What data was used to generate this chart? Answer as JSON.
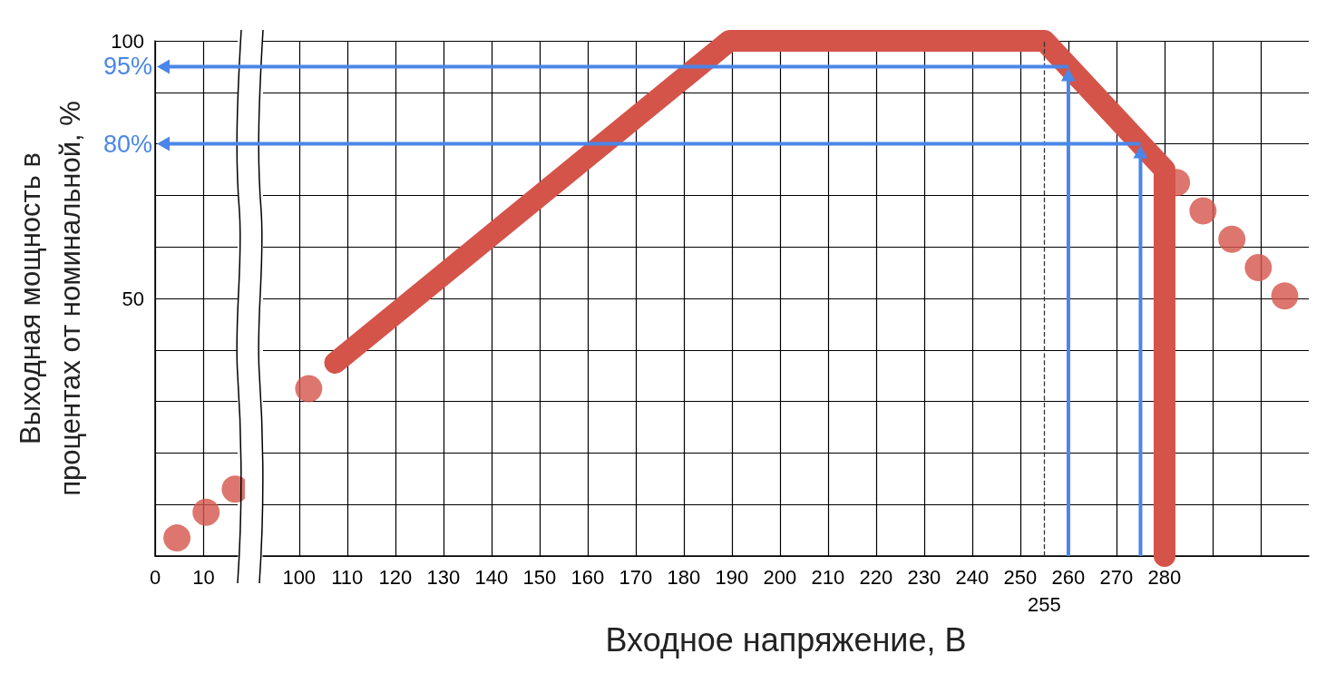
{
  "chart_data": [
    {
      "type": "scatter",
      "ylabel": "Выходная мощность в\nпроцентах от номинальной, %",
      "xlim": [
        0,
        17
      ],
      "xticks": [
        0,
        10
      ],
      "ylim": [
        0,
        100
      ],
      "yticks": [
        {
          "value": 0,
          "label": null
        },
        {
          "value": 10,
          "label": null
        },
        {
          "value": 20,
          "label": null
        },
        {
          "value": 30,
          "label": null
        },
        {
          "value": 40,
          "label": null
        },
        50,
        {
          "value": 60,
          "label": null
        },
        {
          "value": 70,
          "label": null
        },
        {
          "value": 80,
          "label": null
        },
        {
          "value": 90,
          "label": null
        },
        100
      ],
      "grid": true,
      "series": [
        {
          "type": "scatter",
          "marker": "circle",
          "color": "#d4544a",
          "x": [
            4.5,
            10.5,
            16.5
          ],
          "values": [
            3.5,
            8.5,
            13
          ]
        }
      ]
    },
    {
      "type": "line",
      "xlabel": "Входное напряжение, В",
      "xlim": [
        92.5,
        310
      ],
      "xticks": [
        100,
        110,
        120,
        130,
        140,
        150,
        160,
        170,
        180,
        190,
        200,
        210,
        220,
        230,
        240,
        250,
        260,
        270,
        280,
        {
          "value": 290,
          "label": null
        },
        {
          "value": 300,
          "label": null
        }
      ],
      "ylim": [
        0,
        100
      ],
      "yticks": [
        {
          "value": 0,
          "label": null
        },
        {
          "value": 10,
          "label": null
        },
        {
          "value": 20,
          "label": null
        },
        {
          "value": 30,
          "label": null
        },
        {
          "value": 40,
          "label": null
        },
        {
          "value": 50,
          "label": null
        },
        {
          "value": 60,
          "label": null
        },
        {
          "value": 70,
          "label": null
        },
        {
          "value": 80,
          "label": null
        },
        {
          "value": 90,
          "label": null
        },
        {
          "value": 100,
          "label": null
        }
      ],
      "tick_labels": "x",
      "grid": true,
      "ref_lines": [
        {
          "axis": "x",
          "value": 255,
          "label": "255",
          "color": "#333333",
          "line_style": "dashed"
        }
      ],
      "annotations": [
        "95%",
        "80%"
      ],
      "series": [
        {
          "marker": "none",
          "color": "#d4544a",
          "x": [
            107.5,
            189.5,
            255,
            280,
            280
          ],
          "values": [
            37.5,
            100,
            100,
            75,
            0
          ]
        },
        {
          "type": "scatter",
          "marker": "circle",
          "color": "#d4544a",
          "x": [
            102,
            282.5,
            288,
            294,
            299.5,
            305
          ],
          "values": [
            32.5,
            72.5,
            67,
            61.5,
            56,
            50.5
          ]
        }
      ]
    }
  ]
}
